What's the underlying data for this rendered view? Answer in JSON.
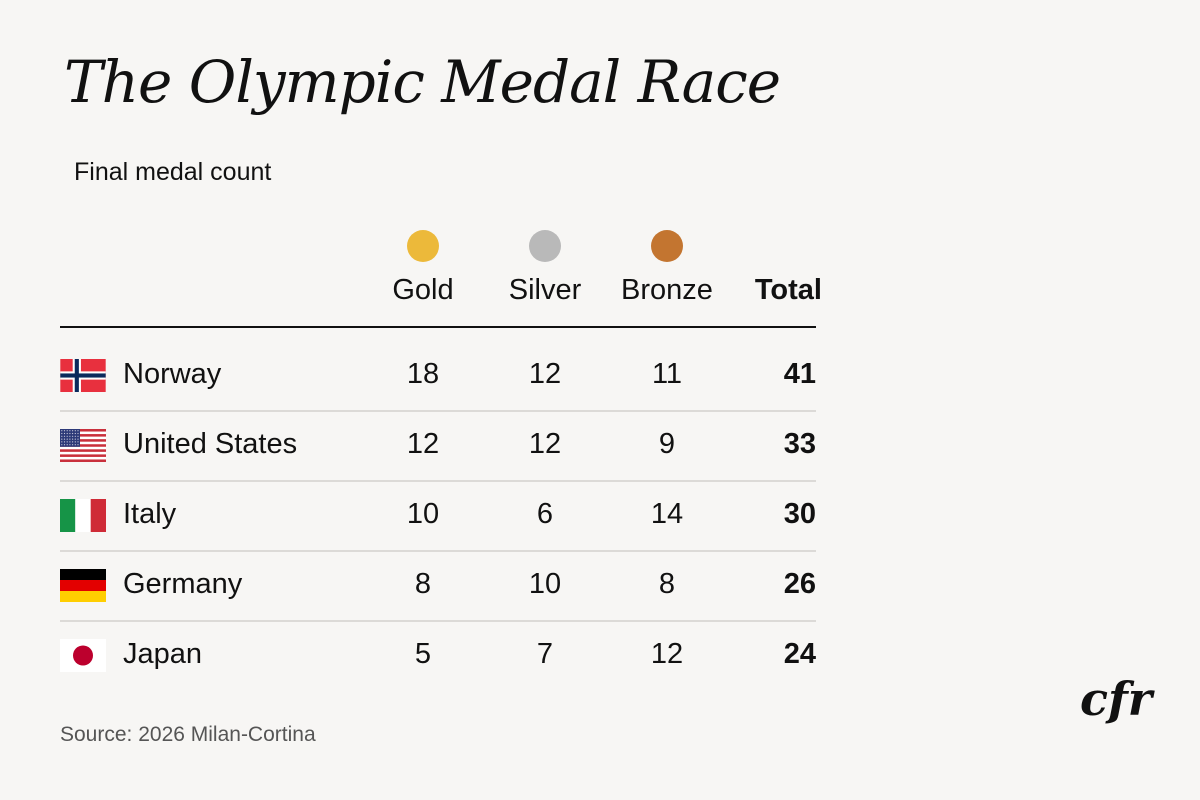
{
  "title": "The Olympic Medal Race",
  "subtitle": "Final medal count",
  "source": "Source: 2026 Milan-Cortina",
  "logo_text": "cfr",
  "colors": {
    "gold": "#ecb93a",
    "silver": "#b9b9b9",
    "bronze": "#c37530",
    "background": "#f7f6f4"
  },
  "chart_data": {
    "type": "table",
    "columns": [
      "Gold",
      "Silver",
      "Bronze",
      "Total"
    ],
    "rows": [
      {
        "country": "Norway",
        "flag": "norway-flag",
        "values": [
          18,
          12,
          11,
          41
        ]
      },
      {
        "country": "United States",
        "flag": "us-flag",
        "values": [
          12,
          12,
          9,
          33
        ]
      },
      {
        "country": "Italy",
        "flag": "italy-flag",
        "values": [
          10,
          6,
          14,
          30
        ]
      },
      {
        "country": "Germany",
        "flag": "germany-flag",
        "values": [
          8,
          10,
          8,
          26
        ]
      },
      {
        "country": "Japan",
        "flag": "japan-flag",
        "values": [
          5,
          7,
          12,
          24
        ]
      }
    ]
  }
}
